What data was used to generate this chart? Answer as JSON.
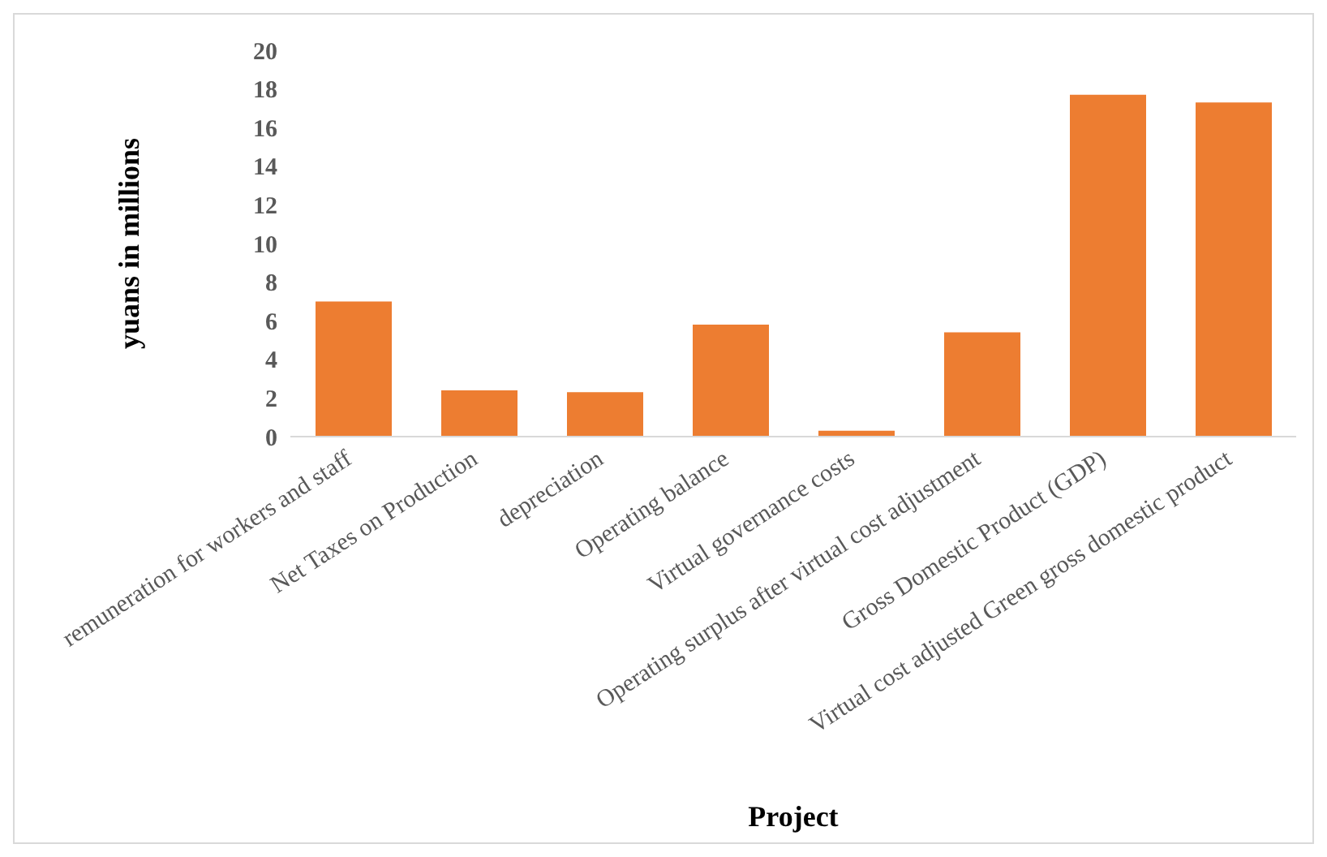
{
  "chart_data": {
    "type": "bar",
    "xlabel": "Project",
    "ylabel": "yuans in millions",
    "categories": [
      "remuneration for workers and staff",
      "Net Taxes on Production",
      "depreciation",
      "Operating balance",
      "Virtual governance costs",
      "Operating surplus after virtual cost adjustment",
      "Gross Domestic Product (GDP)",
      "Virtual cost adjusted Green gross domestic product"
    ],
    "values": [
      7.0,
      2.4,
      2.3,
      5.8,
      0.3,
      5.4,
      17.7,
      17.3
    ],
    "color": "#ed7d31",
    "ylim": [
      0,
      20
    ],
    "yticks": [
      0,
      2,
      4,
      6,
      8,
      10,
      12,
      14,
      16,
      18,
      20
    ],
    "grid": false,
    "legend": false
  }
}
